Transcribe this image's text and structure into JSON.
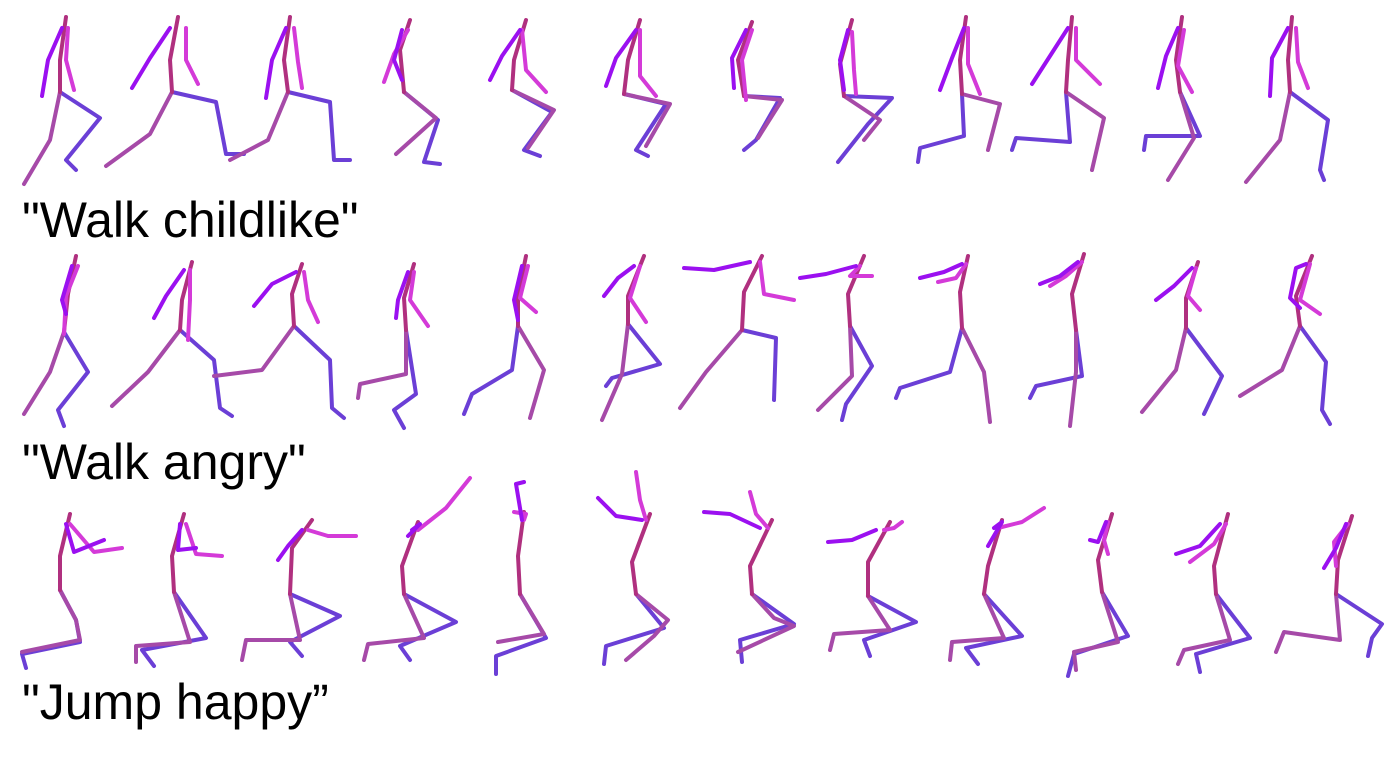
{
  "colors": {
    "spine": "#b0307f",
    "leg_back": "#6b3fd6",
    "leg_front": "#a64aa8",
    "arm_left": "#9b10f0",
    "arm_right": "#d43ad8",
    "text": "#000000"
  },
  "rows": [
    {
      "caption": "\"Walk childlike\"",
      "figure_count": 12
    },
    {
      "caption": "\"Walk angry\"",
      "figure_count": 12
    },
    {
      "caption": "\"Jump happy”",
      "figure_count": 12
    }
  ]
}
